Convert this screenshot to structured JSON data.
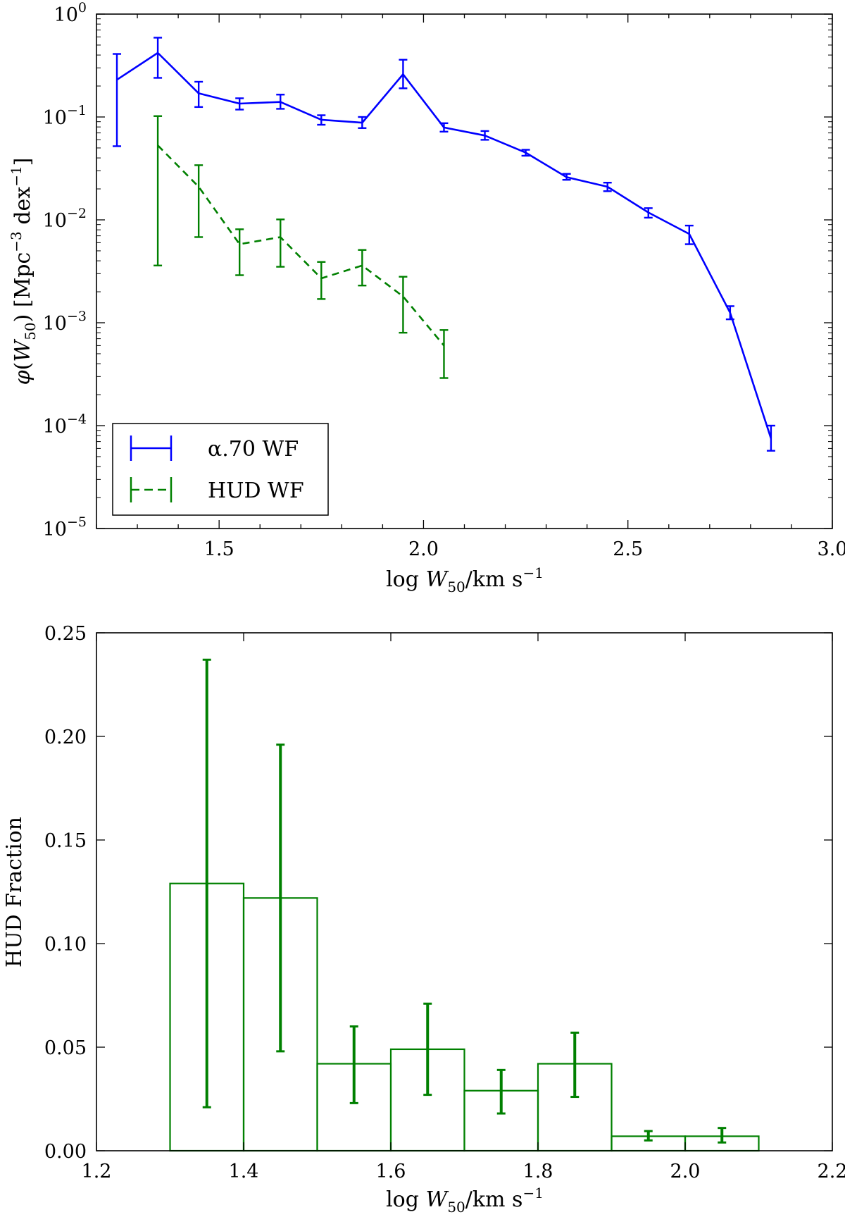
{
  "chart_data": [
    {
      "type": "line",
      "yscale": "log",
      "xlabel": "log W50/km s^-1",
      "ylabel": "φ(W50) [Mpc^-3 dex^-1]",
      "xlim": [
        1.2,
        3.0
      ],
      "ylim_exp": [
        -5,
        0
      ],
      "xticks": [
        "1.5",
        "2.0",
        "2.5",
        "3.0"
      ],
      "xtick_values": [
        1.5,
        2.0,
        2.5,
        3.0
      ],
      "yticks": [
        {
          "base": "10",
          "exp": "0"
        },
        {
          "base": "10",
          "exp": "−1"
        },
        {
          "base": "10",
          "exp": "−2"
        },
        {
          "base": "10",
          "exp": "−3"
        },
        {
          "base": "10",
          "exp": "−4"
        },
        {
          "base": "10",
          "exp": "−5"
        }
      ],
      "ytick_exps": [
        0,
        -1,
        -2,
        -3,
        -4,
        -5
      ],
      "legend": {
        "position": "lower-left",
        "entries": [
          "α.70 WF",
          "HUD WF"
        ]
      },
      "series": [
        {
          "name": "α.70 WF",
          "color": "#0000ff",
          "style": "solid",
          "x": [
            1.25,
            1.35,
            1.45,
            1.55,
            1.65,
            1.75,
            1.85,
            1.95,
            2.05,
            2.15,
            2.25,
            2.35,
            2.45,
            2.55,
            2.65,
            2.75,
            2.85
          ],
          "y": [
            0.23,
            0.42,
            0.17,
            0.135,
            0.14,
            0.094,
            0.088,
            0.26,
            0.079,
            0.066,
            0.045,
            0.026,
            0.021,
            0.0118,
            0.0073,
            0.00125,
            7.5e-05
          ],
          "ylo": [
            0.052,
            0.24,
            0.125,
            0.118,
            0.12,
            0.084,
            0.078,
            0.19,
            0.072,
            0.06,
            0.042,
            0.0245,
            0.019,
            0.0105,
            0.0058,
            0.00108,
            5.7e-05
          ],
          "yhi": [
            0.41,
            0.59,
            0.22,
            0.152,
            0.165,
            0.104,
            0.1,
            0.36,
            0.087,
            0.073,
            0.048,
            0.028,
            0.023,
            0.013,
            0.0088,
            0.00145,
            0.0001
          ]
        },
        {
          "name": "HUD WF",
          "color": "#008000",
          "style": "dashed",
          "x": [
            1.35,
            1.45,
            1.55,
            1.65,
            1.75,
            1.85,
            1.95,
            2.05
          ],
          "y": [
            0.053,
            0.021,
            0.0058,
            0.0068,
            0.0027,
            0.0036,
            0.0018,
            0.0006
          ],
          "ylo": [
            0.0036,
            0.0068,
            0.0029,
            0.0035,
            0.0017,
            0.0023,
            0.0008,
            0.00029
          ],
          "yhi": [
            0.102,
            0.034,
            0.0081,
            0.0101,
            0.0039,
            0.0051,
            0.0028,
            0.00085
          ]
        }
      ]
    },
    {
      "type": "bar",
      "histtype": "step",
      "xlabel": "log W50/km s^-1",
      "ylabel": "HUD Fraction",
      "xlim": [
        1.2,
        2.2
      ],
      "ylim": [
        0.0,
        0.25
      ],
      "xticks": [
        "1.2",
        "1.4",
        "1.6",
        "1.8",
        "2.0",
        "2.2"
      ],
      "xtick_values": [
        1.2,
        1.4,
        1.6,
        1.8,
        2.0,
        2.2
      ],
      "yticks": [
        "0.00",
        "0.05",
        "0.10",
        "0.15",
        "0.20",
        "0.25"
      ],
      "ytick_values": [
        0.0,
        0.05,
        0.1,
        0.15,
        0.2,
        0.25
      ],
      "color": "#008000",
      "bin_edges": [
        1.3,
        1.4,
        1.5,
        1.6,
        1.7,
        1.8,
        1.9,
        2.0,
        2.1
      ],
      "values": [
        0.129,
        0.122,
        0.042,
        0.049,
        0.029,
        0.042,
        0.007,
        0.007
      ],
      "ylo": [
        0.021,
        0.048,
        0.023,
        0.027,
        0.018,
        0.026,
        0.005,
        0.004
      ],
      "yhi": [
        0.237,
        0.196,
        0.06,
        0.071,
        0.039,
        0.057,
        0.0095,
        0.011
      ]
    }
  ]
}
